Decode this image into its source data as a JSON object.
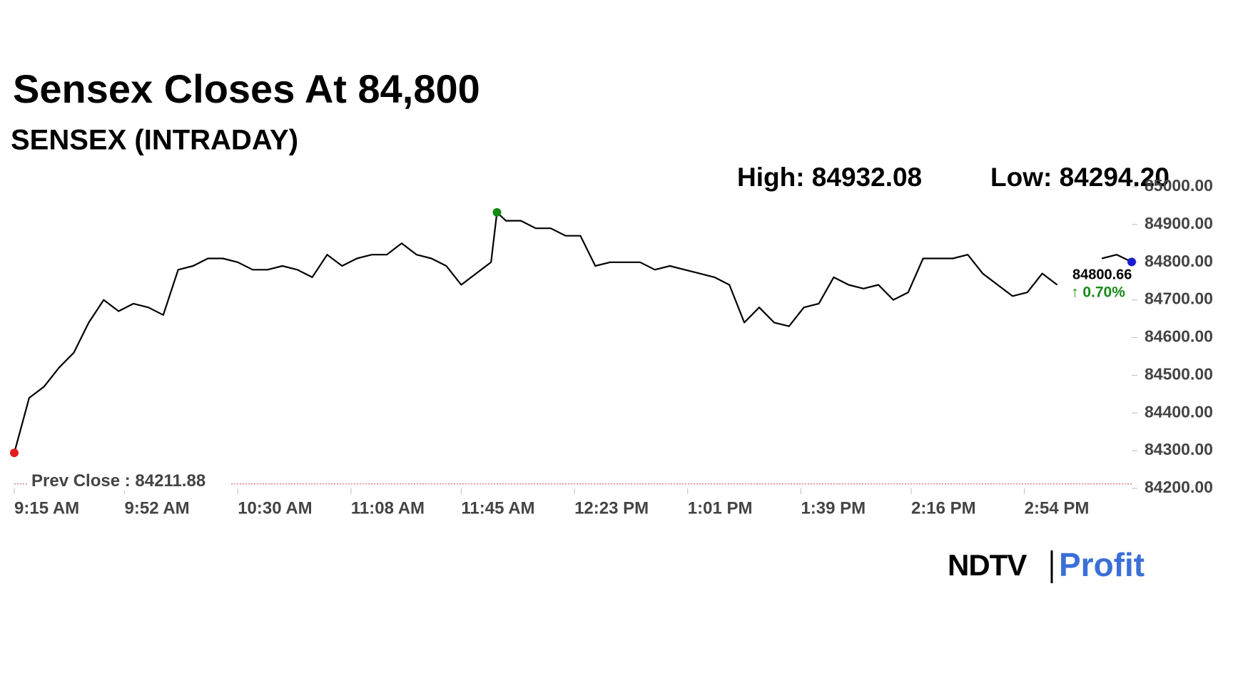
{
  "chart_data": {
    "type": "line",
    "title": "Sensex Closes At 84,800",
    "subtitle": "SENSEX (INTRADAY)",
    "high_label": "High: 84932.08",
    "low_label": "Low: 84294.20",
    "last_label": "84800.66",
    "change_label": "↑ 0.70%",
    "prev_close": 84211.88,
    "prev_close_label": "Prev Close : 84211.88",
    "brand": [
      "NDTV",
      "Profit"
    ],
    "x": [
      "9:15 AM",
      "9:20 AM",
      "9:25 AM",
      "9:30 AM",
      "9:35 AM",
      "9:40 AM",
      "9:45 AM",
      "9:50 AM",
      "9:55 AM",
      "10:00 AM",
      "10:05 AM",
      "10:10 AM",
      "10:15 AM",
      "10:20 AM",
      "10:25 AM",
      "10:30 AM",
      "10:35 AM",
      "10:40 AM",
      "10:45 AM",
      "10:50 AM",
      "10:55 AM",
      "11:00 AM",
      "11:05 AM",
      "11:10 AM",
      "11:15 AM",
      "11:20 AM",
      "11:25 AM",
      "11:30 AM",
      "11:35 AM",
      "11:40 AM",
      "11:45 AM",
      "11:50 AM",
      "11:55 AM",
      "11:57 AM",
      "12:00 PM",
      "12:05 PM",
      "12:10 PM",
      "12:15 PM",
      "12:20 PM",
      "12:25 PM",
      "12:30 PM",
      "12:35 PM",
      "12:40 PM",
      "12:45 PM",
      "12:50 PM",
      "12:55 PM",
      "1:00 PM",
      "1:05 PM",
      "1:10 PM",
      "1:15 PM",
      "1:20 PM",
      "1:25 PM",
      "1:30 PM",
      "1:35 PM",
      "1:40 PM",
      "1:45 PM",
      "1:50 PM",
      "1:55 PM",
      "2:00 PM",
      "2:05 PM",
      "2:10 PM",
      "2:15 PM",
      "2:20 PM",
      "2:25 PM",
      "2:30 PM",
      "2:35 PM",
      "2:40 PM",
      "2:45 PM",
      "2:50 PM",
      "2:55 PM",
      "3:00 PM",
      "3:05 PM",
      "3:10 PM",
      "3:15 PM",
      "3:20 PM",
      "3:25 PM",
      "3:30 PM"
    ],
    "series": [
      {
        "name": "SENSEX",
        "color": "#000000",
        "values": [
          84294.2,
          84440,
          84470,
          84520,
          84560,
          84640,
          84700,
          84670,
          84690,
          84680,
          84660,
          84780,
          84790,
          84810,
          84810,
          84800,
          84780,
          84780,
          84790,
          84780,
          84760,
          84820,
          84790,
          84810,
          84820,
          84820,
          84850,
          84820,
          84810,
          84790,
          84740,
          84770,
          84800,
          84932.08,
          84910,
          84910,
          84890,
          84890,
          84870,
          84870,
          84790,
          84800,
          84800,
          84800,
          84780,
          84790,
          84780,
          84770,
          84760,
          84740,
          84640,
          84680,
          84640,
          84630,
          84680,
          84690,
          84760,
          84740,
          84730,
          84740,
          84700,
          84720,
          84810,
          84810,
          84810,
          84820,
          84770,
          84740,
          84710,
          84720,
          84770,
          84740,
          null,
          null,
          84810,
          84820,
          84800.66
        ]
      }
    ],
    "xlim": [
      "9:15 AM",
      "3:30 PM"
    ],
    "xticks": [
      "9:15 AM",
      "9:52 AM",
      "10:30 AM",
      "11:08 AM",
      "11:45 AM",
      "12:23 PM",
      "1:01 PM",
      "1:39 PM",
      "2:16 PM",
      "2:54 PM"
    ],
    "ylim": [
      84200,
      85000
    ],
    "yticks": [
      {
        "value": 84200,
        "label": "84200.00"
      },
      {
        "value": 84300,
        "label": "84300.00"
      },
      {
        "value": 84400,
        "label": "84400.00"
      },
      {
        "value": 84500,
        "label": "84500.00"
      },
      {
        "value": 84600,
        "label": "84600.00"
      },
      {
        "value": 84700,
        "label": "84700.00"
      },
      {
        "value": 84800,
        "label": "84800.00"
      },
      {
        "value": 84900,
        "label": "84900.00"
      },
      {
        "value": 85000,
        "label": "85000.00"
      }
    ]
  }
}
